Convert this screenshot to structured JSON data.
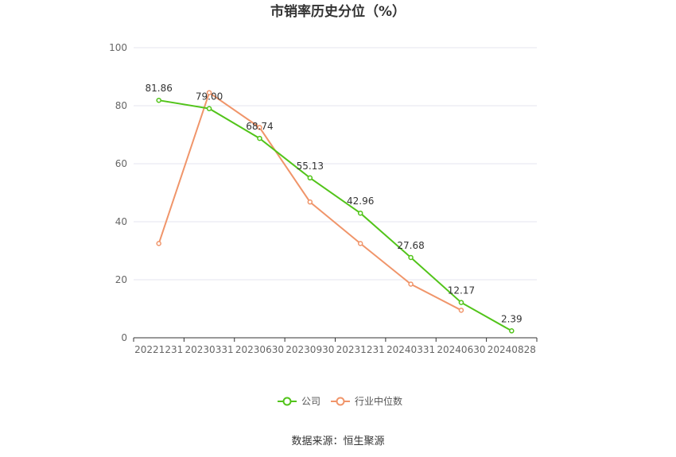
{
  "chart_data": {
    "type": "line",
    "title": "市销率历史分位（%）",
    "categories": [
      "20221231",
      "20230331",
      "20230630",
      "20230930",
      "20231231",
      "20240331",
      "20240630",
      "20240828"
    ],
    "ylim": [
      0,
      100
    ],
    "yticks": [
      0,
      20,
      40,
      60,
      80,
      100
    ],
    "grid": true,
    "legend_position": "bottom",
    "series": [
      {
        "name": "公司",
        "color": "#52c41a",
        "values": [
          81.86,
          79.0,
          68.74,
          55.13,
          42.96,
          27.68,
          12.17,
          2.39
        ],
        "labels": [
          "81.86",
          "79.00",
          "68.74",
          "55.13",
          "42.96",
          "27.68",
          "12.17",
          "2.39"
        ]
      },
      {
        "name": "行业中位数",
        "color": "#f0956a",
        "values": [
          32.5,
          84.5,
          72.5,
          46.8,
          32.5,
          18.5,
          9.5,
          null
        ]
      }
    ]
  },
  "source_text": "数据来源：恒生聚源"
}
